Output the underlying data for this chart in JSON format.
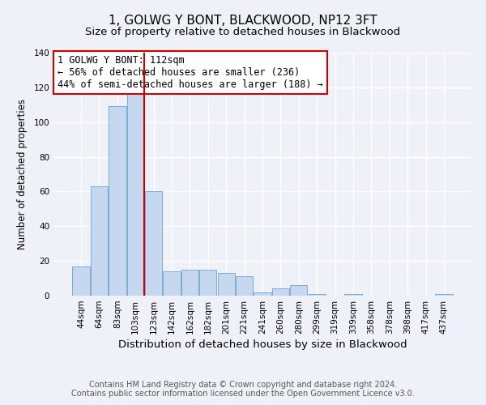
{
  "title": "1, GOLWG Y BONT, BLACKWOOD, NP12 3FT",
  "subtitle": "Size of property relative to detached houses in Blackwood",
  "xlabel": "Distribution of detached houses by size in Blackwood",
  "ylabel": "Number of detached properties",
  "categories": [
    "44sqm",
    "64sqm",
    "83sqm",
    "103sqm",
    "123sqm",
    "142sqm",
    "162sqm",
    "182sqm",
    "201sqm",
    "221sqm",
    "241sqm",
    "260sqm",
    "280sqm",
    "299sqm",
    "319sqm",
    "339sqm",
    "358sqm",
    "378sqm",
    "398sqm",
    "417sqm",
    "437sqm"
  ],
  "values": [
    17,
    63,
    109,
    117,
    60,
    14,
    15,
    15,
    13,
    11,
    2,
    4,
    6,
    1,
    0,
    1,
    0,
    0,
    0,
    0,
    1
  ],
  "bar_color": "#c5d8f0",
  "bar_edge_color": "#7aadd4",
  "vline_x": 3.5,
  "vline_color": "#cc0000",
  "ylim": [
    0,
    140
  ],
  "yticks": [
    0,
    20,
    40,
    60,
    80,
    100,
    120,
    140
  ],
  "annotation_title": "1 GOLWG Y BONT: 112sqm",
  "annotation_line1": "← 56% of detached houses are smaller (236)",
  "annotation_line2": "44% of semi-detached houses are larger (188) →",
  "annotation_box_color": "#ffffff",
  "annotation_box_edge": "#cc0000",
  "footer_line1": "Contains HM Land Registry data © Crown copyright and database right 2024.",
  "footer_line2": "Contains public sector information licensed under the Open Government Licence v3.0.",
  "background_color": "#eef2f8",
  "grid_color": "#ffffff",
  "title_fontsize": 11,
  "subtitle_fontsize": 9.5,
  "xlabel_fontsize": 9.5,
  "ylabel_fontsize": 8.5,
  "tick_fontsize": 7.5,
  "annotation_fontsize": 8.5,
  "footer_fontsize": 7.0
}
